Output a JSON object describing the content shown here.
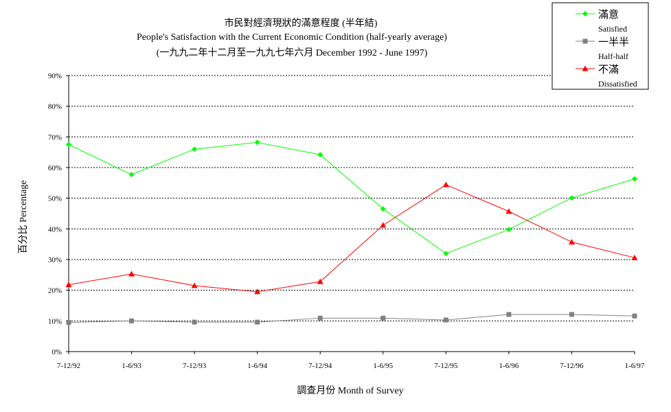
{
  "chart_data": {
    "type": "line",
    "title_lines": [
      "市民對經濟現狀的滿意程度 (半年結)",
      "People's Satisfaction with the Current Economic Condition (half-yearly average)",
      "(一九九二年十二月至一九九七年六月 December 1992 - June 1997)"
    ],
    "xlabel": "調查月份 Month of Survey",
    "ylabel": "百分比 Percentage",
    "ylim": [
      0,
      90
    ],
    "y_ticks": [
      "0%",
      "10%",
      "20%",
      "30%",
      "40%",
      "50%",
      "60%",
      "70%",
      "80%",
      "90%"
    ],
    "grid": "horizontal dotted",
    "legend_position": "top-right",
    "categories": [
      "7-12/92",
      "1-6/93",
      "7-12/93",
      "1-6/94",
      "7-12/94",
      "1-6/95",
      "7-12/95",
      "1-6/96",
      "7-12/96",
      "1-6/97"
    ],
    "series": [
      {
        "name": "滿意",
        "name_en": "Satisfied",
        "color": "#00ff00",
        "marker": "diamond",
        "values": [
          67.5,
          57.7,
          66.0,
          68.2,
          64.2,
          46.5,
          32.0,
          39.8,
          50.1,
          56.3
        ]
      },
      {
        "name": "一半半",
        "name_en": "Half-half",
        "color": "#808080",
        "marker": "square",
        "values": [
          9.5,
          10.0,
          9.6,
          9.6,
          10.9,
          10.9,
          10.3,
          12.1,
          12.1,
          11.6
        ]
      },
      {
        "name": "不滿",
        "name_en": "Dissatisfied",
        "color": "#ff0000",
        "marker": "triangle",
        "values": [
          21.8,
          25.3,
          21.5,
          19.5,
          22.8,
          41.2,
          54.4,
          45.7,
          35.7,
          30.6
        ]
      }
    ]
  }
}
